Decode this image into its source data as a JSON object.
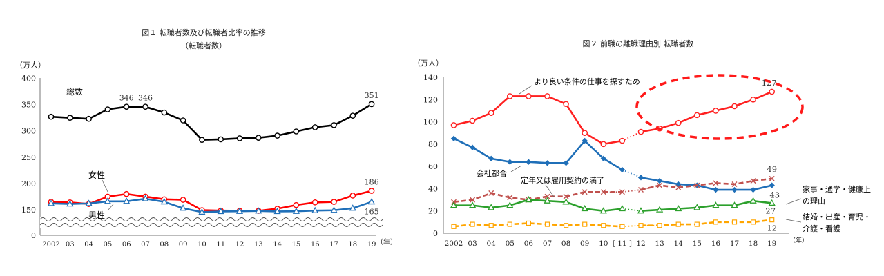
{
  "chart_data": [
    {
      "type": "line",
      "title": "図１ 転職者数及び転職者比率の推移",
      "subtitle": "（転職者数）",
      "ylabel": "（万人）",
      "xlabel": "（年）",
      "categories": [
        "2002",
        "03",
        "04",
        "05",
        "06",
        "07",
        "08",
        "09",
        "10",
        "11",
        "12",
        "13",
        "14",
        "15",
        "16",
        "17",
        "18",
        "19"
      ],
      "ylim": [
        0,
        400
      ],
      "yticks": [
        "0",
        "150",
        "200",
        "250",
        "300",
        "350",
        "400"
      ],
      "axis_break": "0–150",
      "series": [
        {
          "name": "総数",
          "color": "#000000",
          "marker": "circle",
          "values": [
            327,
            325,
            323,
            341,
            346,
            346,
            335,
            320,
            283,
            284,
            286,
            287,
            291,
            299,
            307,
            311,
            329,
            351
          ]
        },
        {
          "name": "女性",
          "color": "#ff0000",
          "marker": "circle",
          "values": [
            165,
            164,
            161,
            175,
            180,
            175,
            170,
            169,
            148,
            145,
            144,
            144,
            152,
            159,
            164,
            165,
            177,
            186
          ]
        },
        {
          "name": "男性",
          "color": "#1f6fb8",
          "marker": "triangle",
          "values": [
            162,
            161,
            162,
            166,
            166,
            171,
            165,
            153,
            136,
            140,
            141,
            143,
            140,
            141,
            145,
            147,
            153,
            165
          ]
        }
      ],
      "annotations": [
        {
          "series": 0,
          "index": 4,
          "text": "346"
        },
        {
          "series": 0,
          "index": 5,
          "text": "346"
        },
        {
          "series": 0,
          "index": 17,
          "text": "351"
        },
        {
          "series": 1,
          "index": 17,
          "text": "186"
        },
        {
          "series": 2,
          "index": 17,
          "text": "165"
        }
      ]
    },
    {
      "type": "line",
      "title": "図２ 前職の離職理由別 転職者数",
      "ylabel": "（万人）",
      "xlabel": "（年）",
      "categories": [
        "2002",
        "03",
        "04",
        "05",
        "06",
        "07",
        "08",
        "09",
        "10",
        "11",
        "12",
        "13",
        "14",
        "15",
        "16",
        "17",
        "18",
        "19"
      ],
      "category_bracket": "[ 11 ]",
      "ylim": [
        0,
        140
      ],
      "yticks": [
        "0",
        "20",
        "40",
        "60",
        "80",
        "100",
        "120",
        "140"
      ],
      "series": [
        {
          "name": "より良い条件の仕事を探すため",
          "color": "#ff2020",
          "marker": "circle",
          "style": "solid",
          "values": [
            97,
            101,
            108,
            123,
            123,
            123,
            116,
            90,
            80,
            83,
            91,
            94,
            99,
            106,
            110,
            114,
            120,
            127
          ]
        },
        {
          "name": "会社都合",
          "color": "#1f6fb8",
          "marker": "diamond",
          "style": "solid",
          "values": [
            85,
            77,
            67,
            64,
            64,
            63,
            63,
            83,
            67,
            57,
            50,
            47,
            44,
            43,
            39,
            39,
            39,
            43
          ]
        },
        {
          "name": "定年又は雇用契約の満了",
          "color": "#c0504d",
          "marker": "cross",
          "style": "dashed",
          "values": [
            28,
            30,
            36,
            32,
            30,
            33,
            33,
            37,
            37,
            37,
            39,
            43,
            41,
            43,
            45,
            44,
            47,
            49
          ]
        },
        {
          "name": "家事・通学・健康上の理由",
          "color": "#2ca02c",
          "marker": "triangle",
          "style": "solid",
          "values": [
            25,
            25,
            23,
            25,
            30,
            29,
            28,
            22,
            20,
            22,
            20,
            21,
            22,
            23,
            25,
            25,
            29,
            27
          ]
        },
        {
          "name": "結婚・出産・育児・介護・看護",
          "color": "#ffa500",
          "marker": "square",
          "style": "dashed",
          "values": [
            6,
            8,
            7,
            8,
            9,
            8,
            7,
            8,
            7,
            6,
            7,
            7,
            8,
            8,
            10,
            10,
            10,
            12
          ]
        }
      ],
      "annotations": [
        {
          "series": 0,
          "index": 17,
          "text": "127"
        },
        {
          "series": 1,
          "index": 17,
          "text": "43"
        },
        {
          "series": 2,
          "index": 17,
          "text": "49"
        },
        {
          "series": 3,
          "index": 17,
          "text": "27"
        },
        {
          "series": 4,
          "index": 17,
          "text": "12"
        }
      ],
      "legend_labels": {
        "reason_main": "より良い条件の仕事を探すため",
        "company": "会社都合",
        "retire": "定年又は雇用契約の満了",
        "house_line1": "家事・通学・健康上",
        "house_line2": "の理由",
        "marriage_line1": "結婚・出産・育児・",
        "marriage_line2": "介護・看護"
      }
    }
  ]
}
